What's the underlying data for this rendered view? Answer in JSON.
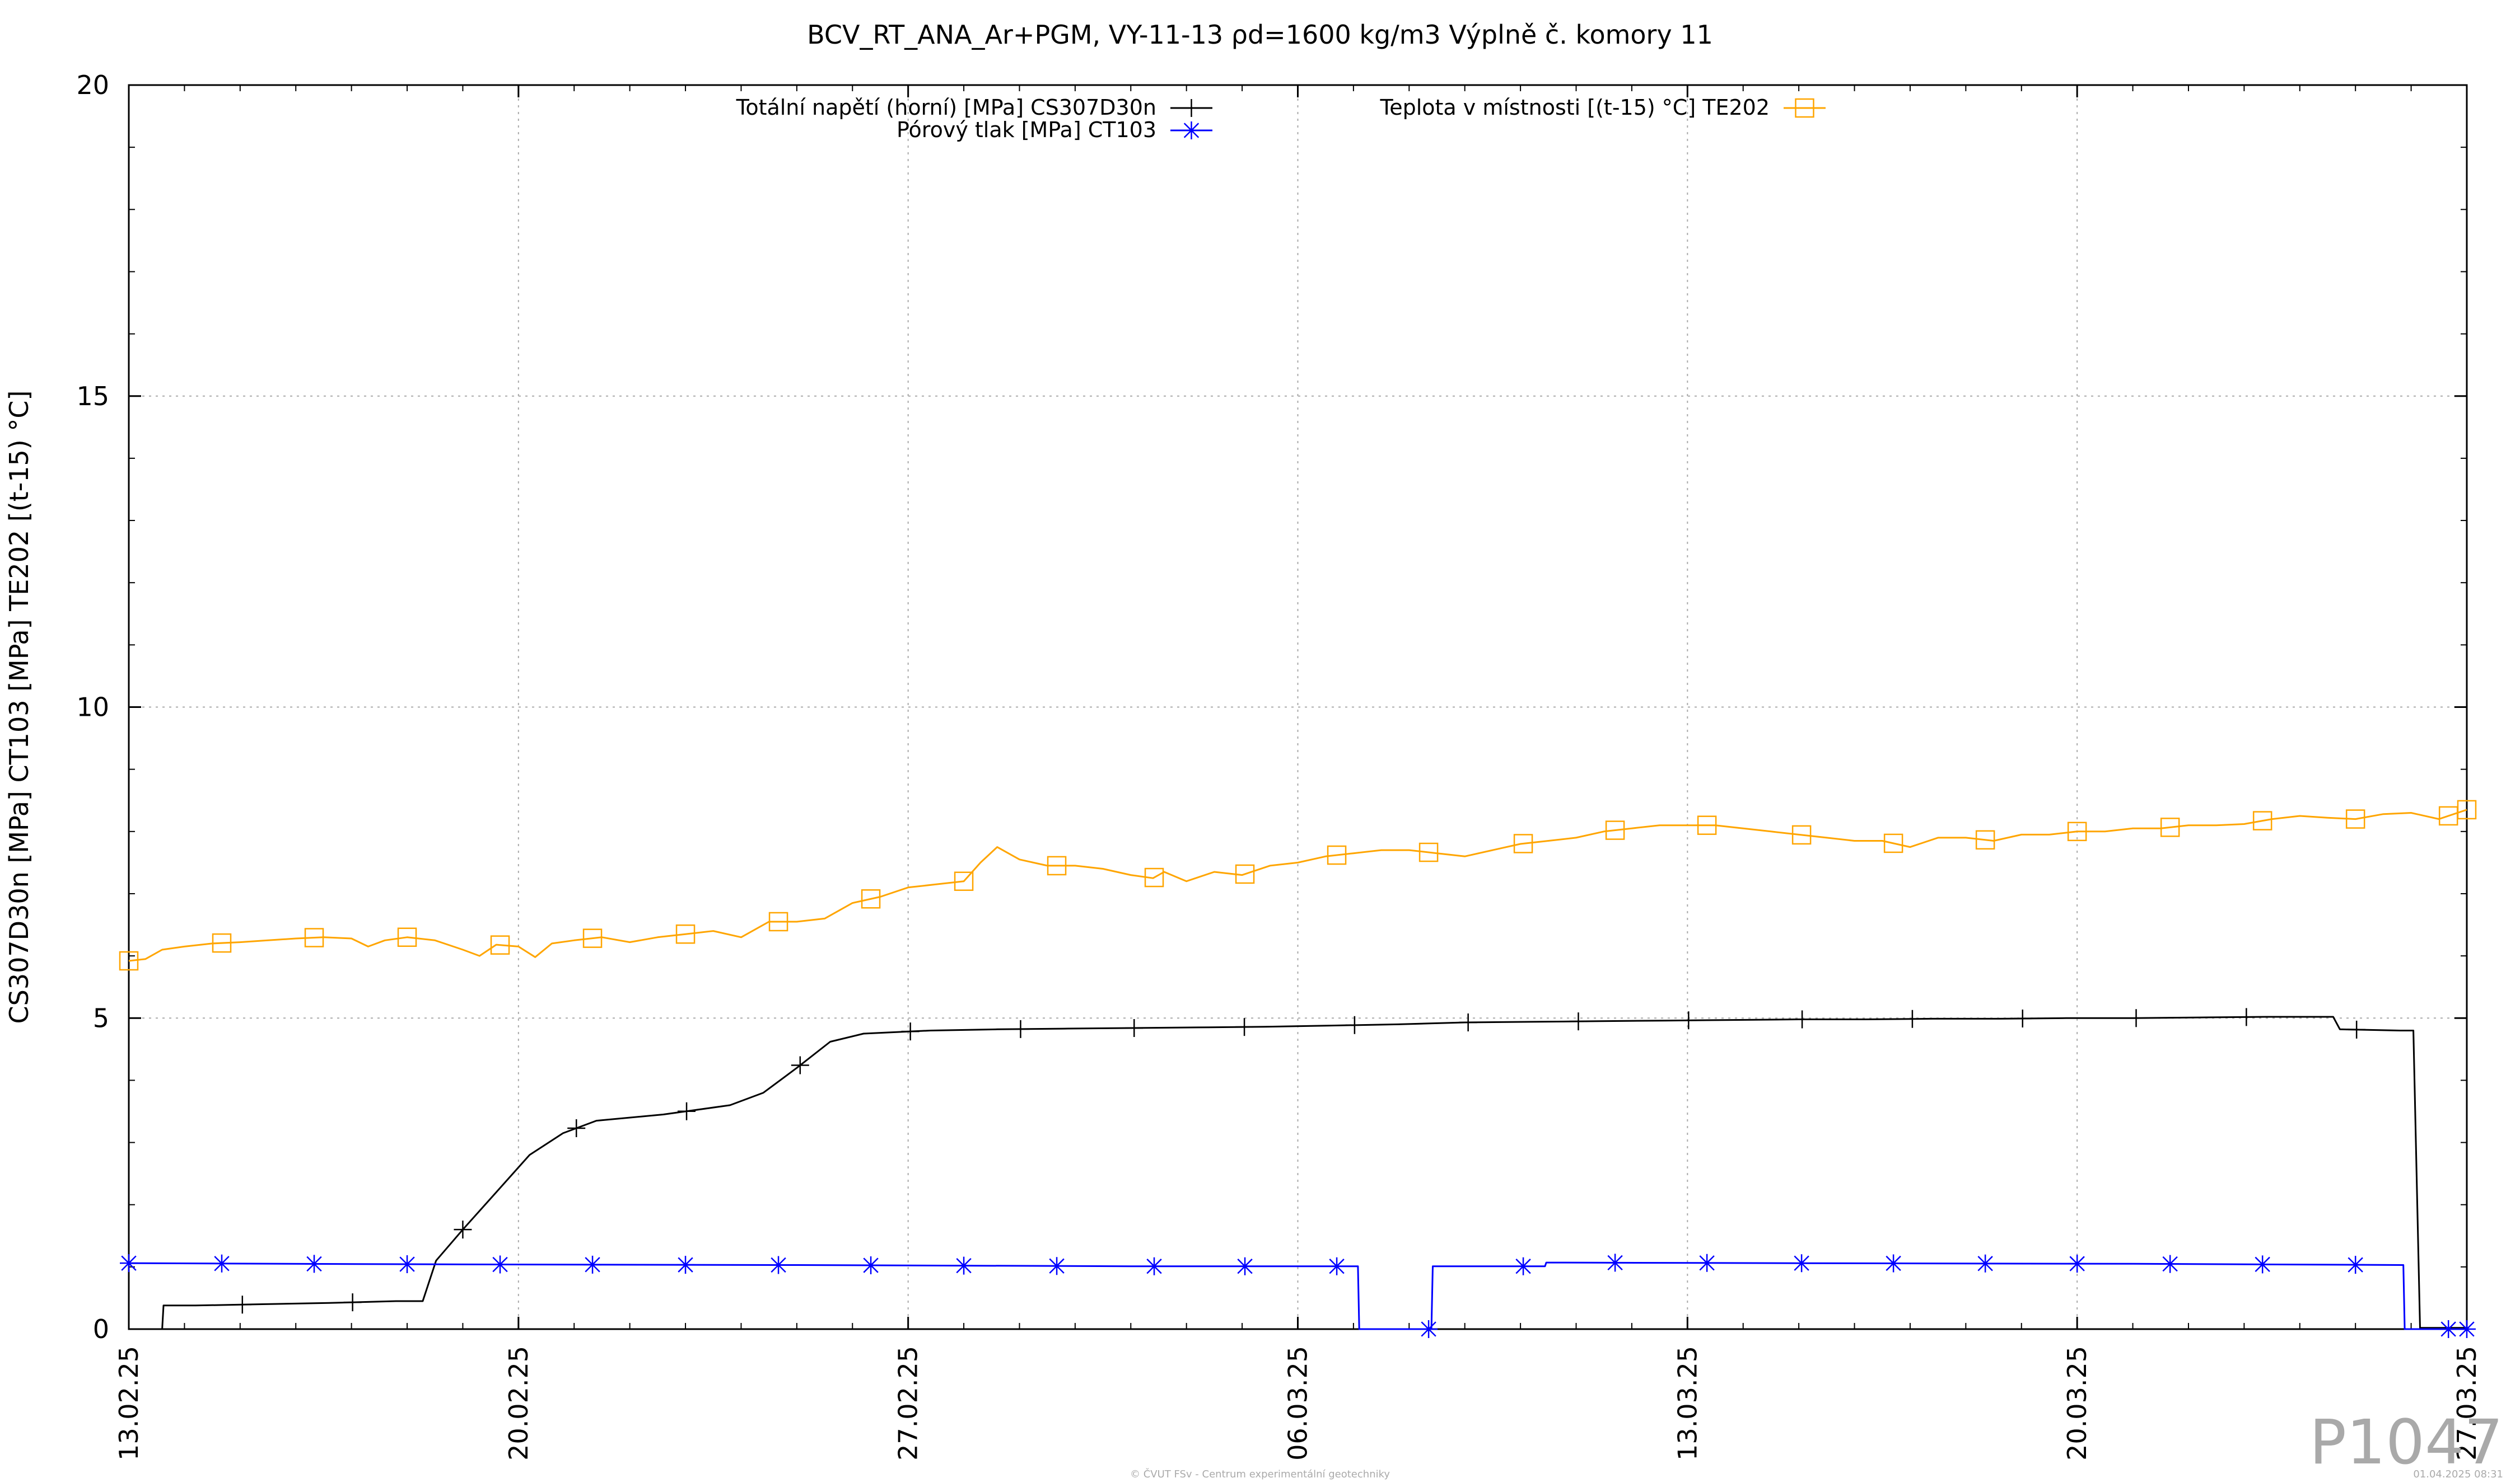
{
  "chart_data": {
    "type": "line",
    "title": "BCV_RT_ANA_Ar+PGM, VY-11-13 ρd=1600 kg/m3 Výplně č. komory 11",
    "ylabel": "CS307D30n [MPa] CT103 [MPa] TE202 [(t-15) °C]",
    "xlabel": "",
    "xlim": [
      "13.02.25",
      "20.03.25"
    ],
    "ylim": [
      0,
      20
    ],
    "x_ticks": [
      "13.02.25",
      "20.02.25",
      "27.02.25",
      "06.03.25",
      "13.03.25",
      "20.03.25",
      "27.03.25"
    ],
    "y_ticks": [
      "0",
      "5",
      "10",
      "15",
      "20"
    ],
    "grid": true,
    "legend_placement": "top",
    "series": [
      {
        "name": "Totální napětí (horní) [MPa] CS307D30n",
        "color": "#000000",
        "marker": "plus",
        "points": [
          [
            0,
            0
          ],
          [
            0.5,
            0
          ],
          [
            0.52,
            0.38
          ],
          [
            1,
            0.38
          ],
          [
            2,
            0.4
          ],
          [
            3,
            0.42
          ],
          [
            4,
            0.45
          ],
          [
            4.4,
            0.45
          ],
          [
            4.6,
            1.1
          ],
          [
            5,
            1.6
          ],
          [
            5.5,
            2.2
          ],
          [
            6,
            2.8
          ],
          [
            6.5,
            3.15
          ],
          [
            7,
            3.35
          ],
          [
            8,
            3.45
          ],
          [
            9,
            3.6
          ],
          [
            9.5,
            3.8
          ],
          [
            10,
            4.2
          ],
          [
            10.5,
            4.62
          ],
          [
            11,
            4.75
          ],
          [
            12,
            4.8
          ],
          [
            13,
            4.82
          ],
          [
            14,
            4.83
          ],
          [
            15,
            4.84
          ],
          [
            16,
            4.85
          ],
          [
            17,
            4.86
          ],
          [
            18,
            4.88
          ],
          [
            19,
            4.9
          ],
          [
            20,
            4.93
          ],
          [
            21,
            4.94
          ],
          [
            22,
            4.95
          ],
          [
            23,
            4.96
          ],
          [
            24,
            4.97
          ],
          [
            25,
            4.98
          ],
          [
            26,
            4.98
          ],
          [
            27,
            4.99
          ],
          [
            28,
            4.99
          ],
          [
            29,
            5.0
          ],
          [
            30,
            5.0
          ],
          [
            31,
            5.01
          ],
          [
            32,
            5.02
          ],
          [
            33,
            5.02
          ],
          [
            33.1,
            4.82
          ],
          [
            34,
            4.8
          ],
          [
            34.2,
            4.8
          ],
          [
            34.3,
            0.02
          ],
          [
            35,
            0.02
          ]
        ],
        "marker_x": [
          1.7,
          3.35,
          5.0,
          6.7,
          8.35,
          10.05,
          11.7,
          13.35,
          15.05,
          16.7,
          18.35,
          20.05,
          21.7,
          23.35,
          25.05,
          26.7,
          28.35,
          30.05,
          31.7,
          33.35
        ]
      },
      {
        "name": "Pórový tlak [MPa] CT103",
        "color": "#0000ff",
        "marker": "asterisk",
        "points": [
          [
            0,
            1.06
          ],
          [
            5,
            1.04
          ],
          [
            10,
            1.03
          ],
          [
            15,
            1.01
          ],
          [
            18.4,
            1.01
          ],
          [
            18.42,
            0.0
          ],
          [
            19.5,
            0.0
          ],
          [
            19.52,
            1.01
          ],
          [
            21.2,
            1.01
          ],
          [
            21.22,
            1.07
          ],
          [
            25,
            1.06
          ],
          [
            30,
            1.05
          ],
          [
            34.05,
            1.03
          ],
          [
            34.07,
            0.0
          ],
          [
            35,
            0.0
          ]
        ],
        "marker_x": [
          0,
          1.67,
          3.33,
          5.0,
          6.67,
          8.33,
          10.0,
          11.67,
          13.33,
          15.0,
          16.67,
          18.42,
          20.05,
          21.7,
          23.35,
          25.05,
          26.7,
          28.35,
          30.05,
          31.7,
          33.35,
          35.0,
          36.67,
          38.33,
          40.0,
          41.67,
          42.0
        ]
      },
      {
        "name": "Teplota v místnosti [(t-15) °C] TE202",
        "color": "#ffa500",
        "marker": "square",
        "points": [
          [
            0,
            5.92
          ],
          [
            0.3,
            5.95
          ],
          [
            0.6,
            6.1
          ],
          [
            1,
            6.15
          ],
          [
            1.5,
            6.2
          ],
          [
            2,
            6.22
          ],
          [
            2.5,
            6.25
          ],
          [
            3,
            6.28
          ],
          [
            3.5,
            6.3
          ],
          [
            4,
            6.28
          ],
          [
            4.3,
            6.15
          ],
          [
            4.6,
            6.25
          ],
          [
            5,
            6.3
          ],
          [
            5.5,
            6.25
          ],
          [
            6,
            6.1
          ],
          [
            6.3,
            6.0
          ],
          [
            6.6,
            6.18
          ],
          [
            7,
            6.15
          ],
          [
            7.3,
            5.98
          ],
          [
            7.6,
            6.2
          ],
          [
            8,
            6.25
          ],
          [
            8.5,
            6.3
          ],
          [
            9,
            6.22
          ],
          [
            9.5,
            6.3
          ],
          [
            10,
            6.35
          ],
          [
            10.5,
            6.4
          ],
          [
            11,
            6.3
          ],
          [
            11.5,
            6.55
          ],
          [
            12,
            6.55
          ],
          [
            12.5,
            6.6
          ],
          [
            13,
            6.85
          ],
          [
            13.5,
            6.95
          ],
          [
            14,
            7.1
          ],
          [
            14.5,
            7.15
          ],
          [
            15,
            7.2
          ],
          [
            15.3,
            7.5
          ],
          [
            15.6,
            7.75
          ],
          [
            16,
            7.55
          ],
          [
            16.5,
            7.45
          ],
          [
            17,
            7.45
          ],
          [
            17.5,
            7.4
          ],
          [
            18,
            7.3
          ],
          [
            18.4,
            7.25
          ],
          [
            18.6,
            7.35
          ],
          [
            19,
            7.2
          ],
          [
            19.5,
            7.35
          ],
          [
            20,
            7.3
          ],
          [
            20.5,
            7.45
          ],
          [
            21,
            7.5
          ],
          [
            21.5,
            7.6
          ],
          [
            22,
            7.65
          ],
          [
            22.5,
            7.7
          ],
          [
            23,
            7.7
          ],
          [
            23.5,
            7.65
          ],
          [
            24,
            7.6
          ],
          [
            24.5,
            7.7
          ],
          [
            25,
            7.8
          ],
          [
            25.5,
            7.85
          ],
          [
            26,
            7.9
          ],
          [
            26.5,
            8.0
          ],
          [
            27,
            8.05
          ],
          [
            27.5,
            8.1
          ],
          [
            28,
            8.1
          ],
          [
            28.5,
            8.1
          ],
          [
            29,
            8.05
          ],
          [
            29.5,
            8.0
          ],
          [
            30,
            7.95
          ],
          [
            30.5,
            7.9
          ],
          [
            31,
            7.85
          ],
          [
            31.5,
            7.85
          ],
          [
            32,
            7.75
          ],
          [
            32.5,
            7.9
          ],
          [
            33,
            7.9
          ],
          [
            33.5,
            7.85
          ],
          [
            34,
            7.95
          ],
          [
            34.5,
            7.95
          ],
          [
            35,
            8.0
          ],
          [
            35.5,
            8.0
          ],
          [
            36,
            8.05
          ],
          [
            36.5,
            8.05
          ],
          [
            37,
            8.1
          ],
          [
            37.5,
            8.1
          ],
          [
            38,
            8.12
          ],
          [
            38.5,
            8.2
          ],
          [
            39,
            8.25
          ],
          [
            39.5,
            8.22
          ],
          [
            40,
            8.2
          ],
          [
            40.5,
            8.28
          ],
          [
            41,
            8.3
          ],
          [
            41.5,
            8.2
          ],
          [
            42,
            8.35
          ]
        ],
        "marker_x": [
          0,
          1.67,
          3.33,
          5.0,
          6.67,
          8.33,
          10.0,
          11.67,
          13.33,
          15.0,
          16.67,
          18.42,
          20.05,
          21.7,
          23.35,
          25.05,
          26.7,
          28.35,
          30.05,
          31.7,
          33.35,
          35.0,
          36.67,
          38.33,
          40.0,
          41.67,
          42.0
        ]
      }
    ]
  },
  "stamp": "P1047",
  "footer_left": "© ČVUT FSv - Centrum experimentální geotechniky",
  "footer_right": "01.04.2025 08:31"
}
